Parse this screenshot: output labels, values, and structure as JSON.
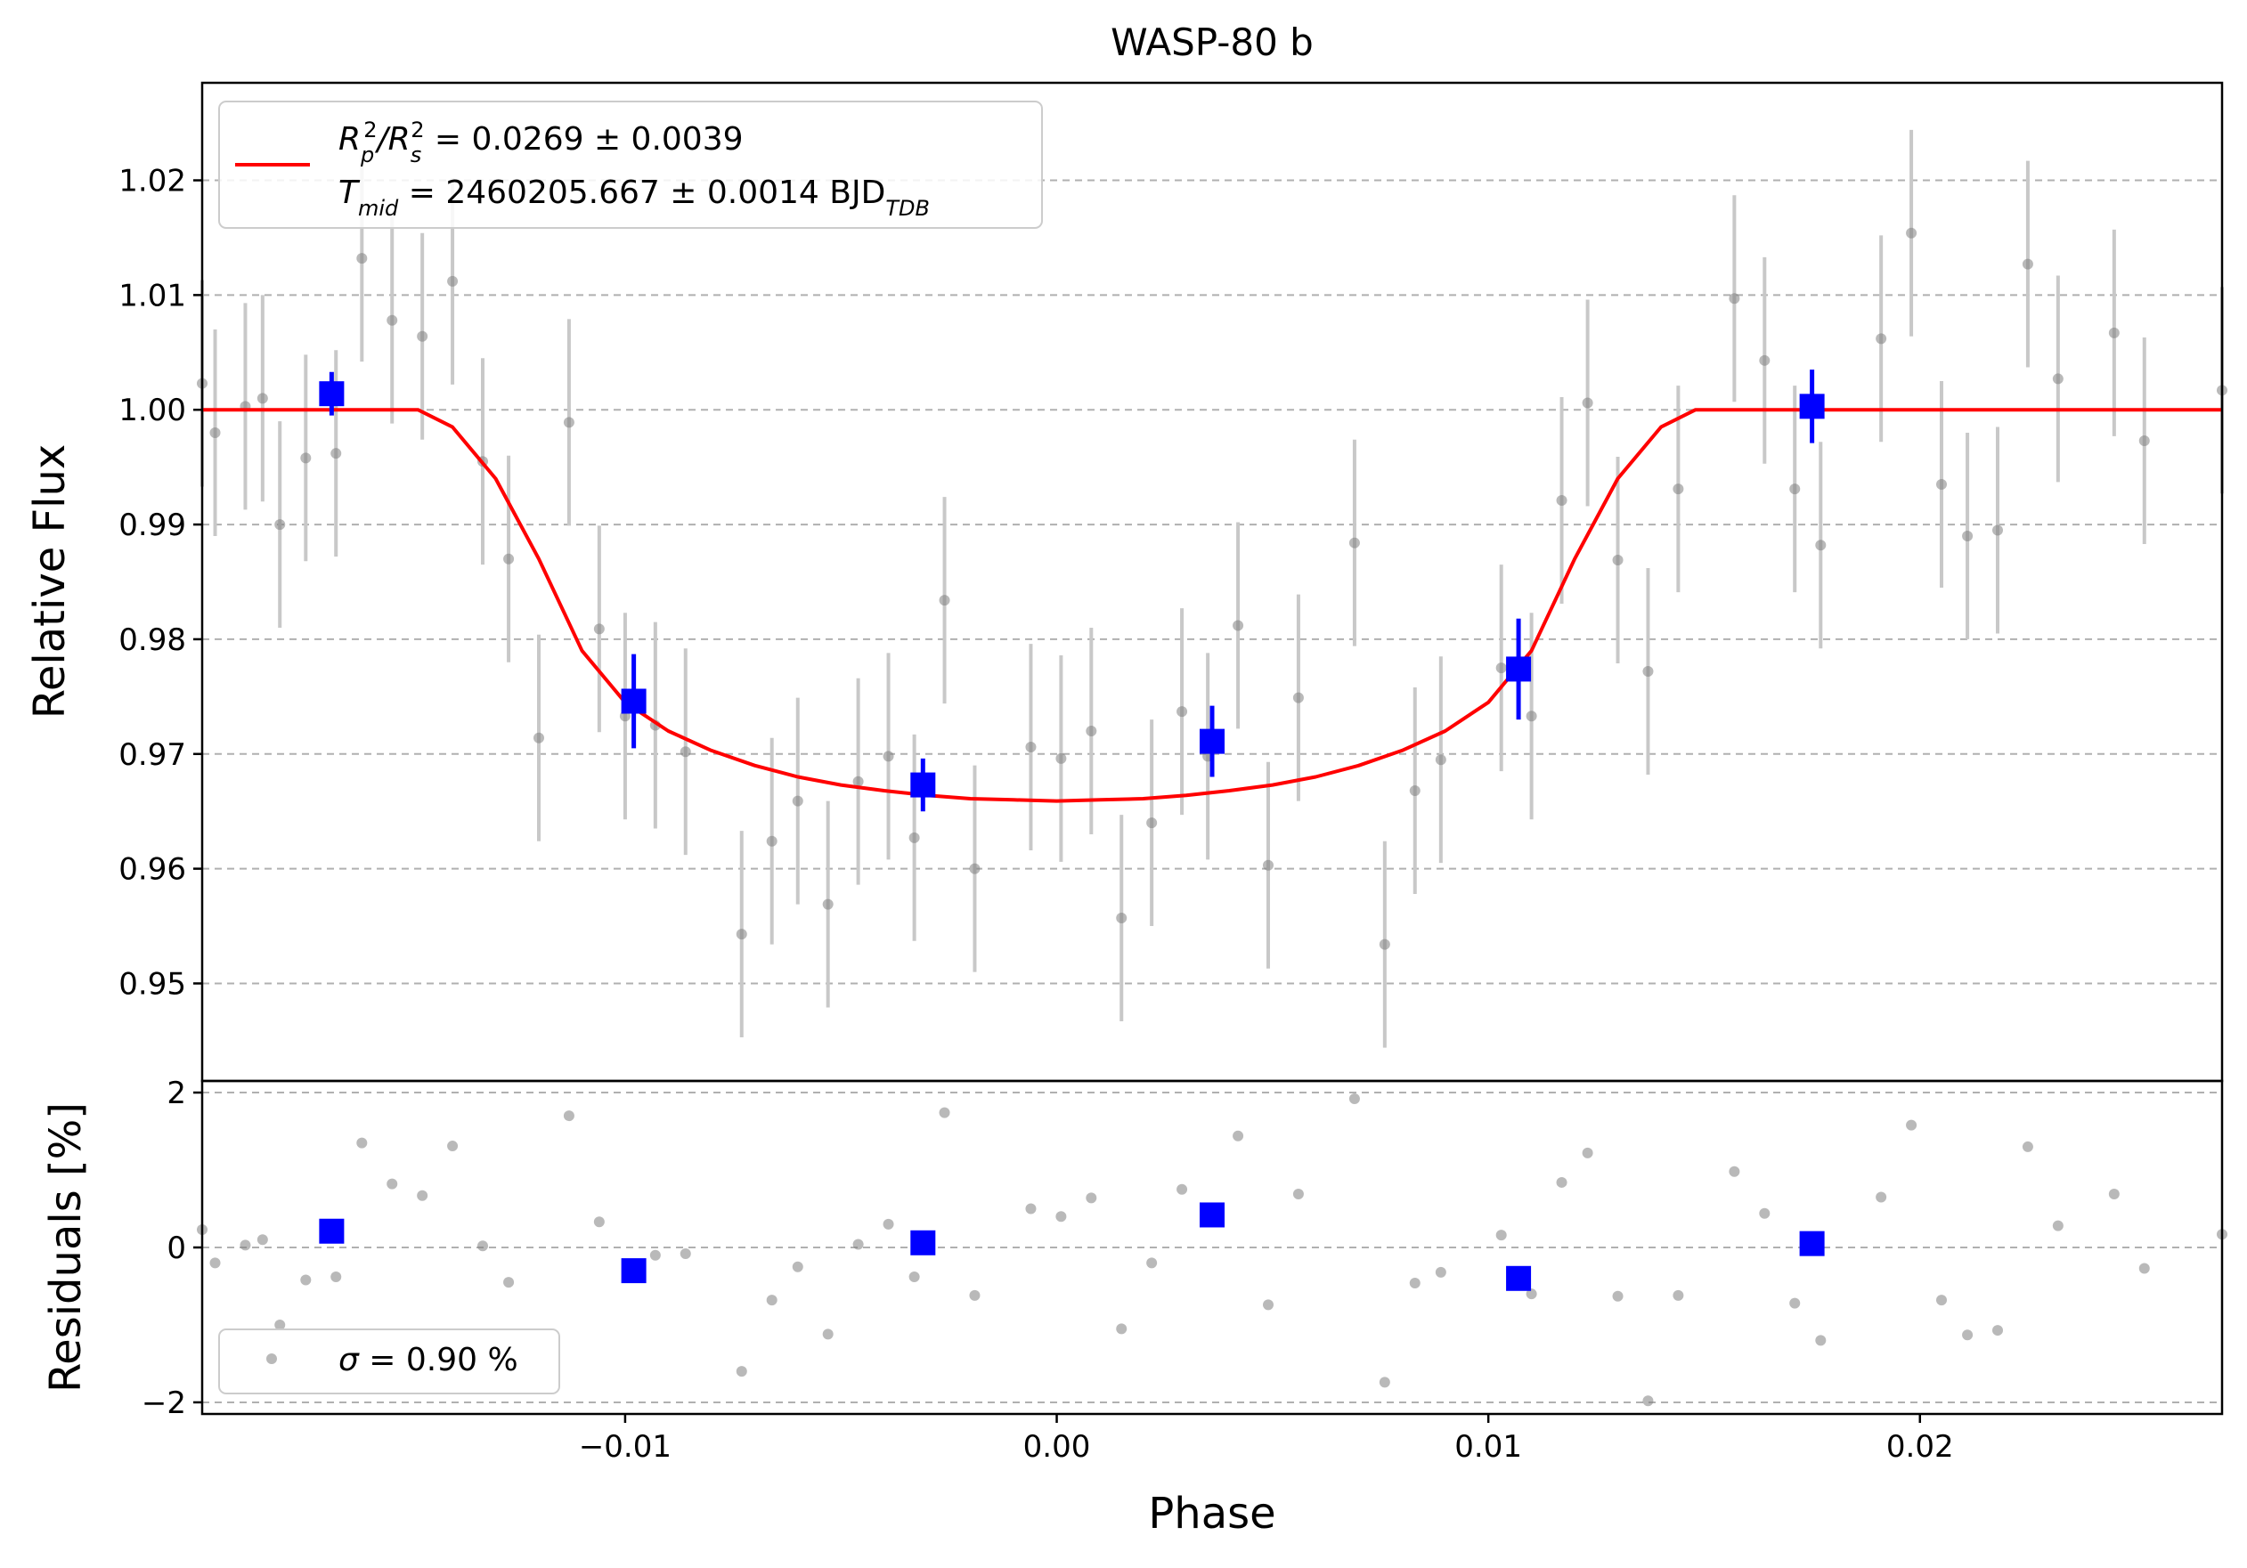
{
  "chart_data": [
    {
      "type": "scatter",
      "panel": "main",
      "title": "WASP-80 b",
      "xlabel": "",
      "ylabel": "Relative Flux",
      "xlim": [
        -0.0198,
        0.027
      ],
      "ylim": [
        0.9415,
        1.0285
      ],
      "yticks": [
        0.95,
        0.96,
        0.97,
        0.98,
        0.99,
        1.0,
        1.01,
        1.02
      ],
      "ytick_labels": [
        "0.95",
        "0.96",
        "0.97",
        "0.98",
        "0.99",
        "1.00",
        "1.01",
        "1.02"
      ],
      "grid": "horizontal dashed",
      "legend": {
        "placement": "top-left",
        "line1_main": "R",
        "line1_sub1": "p",
        "line1_sup1": "2",
        "line1_slash": "/R",
        "line1_sub2": "s",
        "line1_sup2": "2",
        "line1_rest": " = 0.0269 ± 0.0039",
        "line2_main": "T",
        "line2_sub": "mid",
        "line2_rest": " = 2460205.667 ± 0.0014 BJD",
        "line2_unit_sub": "TDB"
      },
      "colors": {
        "data": "#808080",
        "errorbar": "#c8c8c8",
        "binned": "#0000ff",
        "model": "#ff0000",
        "grid": "#b0b0b0"
      },
      "raw_points": [
        {
          "x": -0.0198,
          "y": 1.0023,
          "err": 0.009
        },
        {
          "x": -0.0195,
          "y": 0.998,
          "err": 0.009
        },
        {
          "x": -0.0188,
          "y": 1.0003,
          "err": 0.009
        },
        {
          "x": -0.0184,
          "y": 1.001,
          "err": 0.009
        },
        {
          "x": -0.018,
          "y": 0.99,
          "err": 0.009
        },
        {
          "x": -0.0174,
          "y": 0.9958,
          "err": 0.009
        },
        {
          "x": -0.0167,
          "y": 0.9962,
          "err": 0.009
        },
        {
          "x": -0.0161,
          "y": 1.0132,
          "err": 0.009
        },
        {
          "x": -0.0154,
          "y": 1.0078,
          "err": 0.009
        },
        {
          "x": -0.0147,
          "y": 1.0064,
          "err": 0.009
        },
        {
          "x": -0.014,
          "y": 1.0112,
          "err": 0.009
        },
        {
          "x": -0.0133,
          "y": 0.9955,
          "err": 0.009
        },
        {
          "x": -0.0127,
          "y": 0.987,
          "err": 0.009
        },
        {
          "x": -0.012,
          "y": 0.9714,
          "err": 0.009
        },
        {
          "x": -0.0113,
          "y": 0.9989,
          "err": 0.009
        },
        {
          "x": -0.0106,
          "y": 0.9809,
          "err": 0.009
        },
        {
          "x": -0.01,
          "y": 0.9733,
          "err": 0.009
        },
        {
          "x": -0.0093,
          "y": 0.9725,
          "err": 0.009
        },
        {
          "x": -0.0086,
          "y": 0.9702,
          "err": 0.009
        },
        {
          "x": -0.0073,
          "y": 0.9543,
          "err": 0.009
        },
        {
          "x": -0.0066,
          "y": 0.9624,
          "err": 0.009
        },
        {
          "x": -0.006,
          "y": 0.9659,
          "err": 0.009
        },
        {
          "x": -0.0053,
          "y": 0.9569,
          "err": 0.009
        },
        {
          "x": -0.0046,
          "y": 0.9676,
          "err": 0.009
        },
        {
          "x": -0.0039,
          "y": 0.9698,
          "err": 0.009
        },
        {
          "x": -0.0033,
          "y": 0.9627,
          "err": 0.009
        },
        {
          "x": -0.0026,
          "y": 0.9834,
          "err": 0.009
        },
        {
          "x": -0.0019,
          "y": 0.96,
          "err": 0.009
        },
        {
          "x": -0.0006,
          "y": 0.9706,
          "err": 0.009
        },
        {
          "x": 0.0001,
          "y": 0.9696,
          "err": 0.009
        },
        {
          "x": 0.0008,
          "y": 0.972,
          "err": 0.009
        },
        {
          "x": 0.0015,
          "y": 0.9557,
          "err": 0.009
        },
        {
          "x": 0.0022,
          "y": 0.964,
          "err": 0.009
        },
        {
          "x": 0.0029,
          "y": 0.9737,
          "err": 0.009
        },
        {
          "x": 0.0035,
          "y": 0.9698,
          "err": 0.009
        },
        {
          "x": 0.0042,
          "y": 0.9812,
          "err": 0.009
        },
        {
          "x": 0.0049,
          "y": 0.9603,
          "err": 0.009
        },
        {
          "x": 0.0056,
          "y": 0.9749,
          "err": 0.009
        },
        {
          "x": 0.0069,
          "y": 0.9884,
          "err": 0.009
        },
        {
          "x": 0.0076,
          "y": 0.9534,
          "err": 0.009
        },
        {
          "x": 0.0083,
          "y": 0.9668,
          "err": 0.009
        },
        {
          "x": 0.0089,
          "y": 0.9695,
          "err": 0.009
        },
        {
          "x": 0.0103,
          "y": 0.9775,
          "err": 0.009
        },
        {
          "x": 0.011,
          "y": 0.9733,
          "err": 0.009
        },
        {
          "x": 0.0117,
          "y": 0.9921,
          "err": 0.009
        },
        {
          "x": 0.0123,
          "y": 1.0006,
          "err": 0.009
        },
        {
          "x": 0.013,
          "y": 0.9869,
          "err": 0.009
        },
        {
          "x": 0.0137,
          "y": 0.9772,
          "err": 0.009
        },
        {
          "x": 0.0144,
          "y": 0.9931,
          "err": 0.009
        },
        {
          "x": 0.0157,
          "y": 1.0097,
          "err": 0.009
        },
        {
          "x": 0.0164,
          "y": 1.0043,
          "err": 0.009
        },
        {
          "x": 0.0171,
          "y": 0.9931,
          "err": 0.009
        },
        {
          "x": 0.0177,
          "y": 0.9882,
          "err": 0.009
        },
        {
          "x": 0.0191,
          "y": 1.0062,
          "err": 0.009
        },
        {
          "x": 0.0198,
          "y": 1.0154,
          "err": 0.009
        },
        {
          "x": 0.0205,
          "y": 0.9935,
          "err": 0.009
        },
        {
          "x": 0.0211,
          "y": 0.989,
          "err": 0.009
        },
        {
          "x": 0.0218,
          "y": 0.9895,
          "err": 0.009
        },
        {
          "x": 0.0225,
          "y": 1.0127,
          "err": 0.009
        },
        {
          "x": 0.0232,
          "y": 1.0027,
          "err": 0.009
        },
        {
          "x": 0.0245,
          "y": 1.0067,
          "err": 0.009
        },
        {
          "x": 0.0252,
          "y": 0.9973,
          "err": 0.009
        },
        {
          "x": 0.027,
          "y": 1.0017,
          "err": 0.009
        }
      ],
      "binned_points": [
        {
          "x": -0.0168,
          "y": 1.0014,
          "err": 0.0019
        },
        {
          "x": -0.0098,
          "y": 0.9746,
          "err": 0.0041
        },
        {
          "x": -0.0031,
          "y": 0.9673,
          "err": 0.0023
        },
        {
          "x": 0.0036,
          "y": 0.9711,
          "err": 0.0031
        },
        {
          "x": 0.0107,
          "y": 0.9774,
          "err": 0.0044
        },
        {
          "x": 0.0175,
          "y": 1.0003,
          "err": 0.0032
        }
      ],
      "model": {
        "name": "transit model",
        "depth_center": 0.9659,
        "baseline": 1.0,
        "x": [
          -0.0198,
          -0.0148,
          -0.014,
          -0.013,
          -0.012,
          -0.011,
          -0.01,
          -0.009,
          -0.008,
          -0.007,
          -0.006,
          -0.005,
          -0.004,
          -0.003,
          -0.002,
          -0.001,
          0.0,
          0.001,
          0.002,
          0.003,
          0.004,
          0.005,
          0.006,
          0.007,
          0.008,
          0.009,
          0.01,
          0.011,
          0.012,
          0.013,
          0.014,
          0.0148,
          0.027
        ],
        "y": [
          1.0,
          1.0,
          0.9985,
          0.994,
          0.987,
          0.979,
          0.9745,
          0.972,
          0.9703,
          0.969,
          0.968,
          0.9673,
          0.9668,
          0.9664,
          0.9661,
          0.966,
          0.9659,
          0.966,
          0.9661,
          0.9664,
          0.9668,
          0.9673,
          0.968,
          0.969,
          0.9703,
          0.972,
          0.9745,
          0.979,
          0.987,
          0.994,
          0.9985,
          1.0,
          1.0
        ]
      }
    },
    {
      "type": "scatter",
      "panel": "residuals",
      "xlabel": "Phase",
      "ylabel": "Residuals [%]",
      "xlim": [
        -0.0198,
        0.027
      ],
      "ylim": [
        -2.15,
        2.15
      ],
      "yticks": [
        -2,
        0,
        2
      ],
      "ytick_labels": [
        "−2",
        "0",
        "2"
      ],
      "xticks": [
        -0.01,
        0.0,
        0.01,
        0.02
      ],
      "xtick_labels": [
        "−0.01",
        "0.00",
        "0.01",
        "0.02"
      ],
      "grid": "horizontal dashed",
      "legend": {
        "placement": "bottom-left",
        "sigma_symbol": "σ",
        "sigma_rest": " = 0.90 %"
      },
      "raw_points": [
        {
          "x": -0.0198,
          "y": 0.23
        },
        {
          "x": -0.0195,
          "y": -0.2
        },
        {
          "x": -0.0188,
          "y": 0.03
        },
        {
          "x": -0.0184,
          "y": 0.1
        },
        {
          "x": -0.018,
          "y": -1.0
        },
        {
          "x": -0.0174,
          "y": -0.42
        },
        {
          "x": -0.0167,
          "y": -0.38
        },
        {
          "x": -0.0161,
          "y": 1.35
        },
        {
          "x": -0.0154,
          "y": 0.82
        },
        {
          "x": -0.0147,
          "y": 0.67
        },
        {
          "x": -0.014,
          "y": 1.31
        },
        {
          "x": -0.0133,
          "y": 0.02
        },
        {
          "x": -0.0127,
          "y": -0.45
        },
        {
          "x": -0.0113,
          "y": 1.7
        },
        {
          "x": -0.0106,
          "y": 0.33
        },
        {
          "x": -0.0093,
          "y": -0.1
        },
        {
          "x": -0.0086,
          "y": -0.08
        },
        {
          "x": -0.0073,
          "y": -1.6
        },
        {
          "x": -0.0066,
          "y": -0.68
        },
        {
          "x": -0.006,
          "y": -0.25
        },
        {
          "x": -0.0053,
          "y": -1.12
        },
        {
          "x": -0.0046,
          "y": 0.04
        },
        {
          "x": -0.0039,
          "y": 0.3
        },
        {
          "x": -0.0033,
          "y": -0.38
        },
        {
          "x": -0.0026,
          "y": 1.74
        },
        {
          "x": -0.0019,
          "y": -0.62
        },
        {
          "x": -0.0006,
          "y": 0.5
        },
        {
          "x": 0.0001,
          "y": 0.4
        },
        {
          "x": 0.0008,
          "y": 0.64
        },
        {
          "x": 0.0015,
          "y": -1.05
        },
        {
          "x": 0.0022,
          "y": -0.2
        },
        {
          "x": 0.0029,
          "y": 0.75
        },
        {
          "x": 0.0042,
          "y": 1.44
        },
        {
          "x": 0.0049,
          "y": -0.74
        },
        {
          "x": 0.0056,
          "y": 0.69
        },
        {
          "x": 0.0069,
          "y": 1.92
        },
        {
          "x": 0.0076,
          "y": -1.74
        },
        {
          "x": 0.0083,
          "y": -0.46
        },
        {
          "x": 0.0089,
          "y": -0.32
        },
        {
          "x": 0.0103,
          "y": 0.16
        },
        {
          "x": 0.011,
          "y": -0.6
        },
        {
          "x": 0.0117,
          "y": 0.84
        },
        {
          "x": 0.0123,
          "y": 1.22
        },
        {
          "x": 0.013,
          "y": -0.63
        },
        {
          "x": 0.0137,
          "y": -1.98
        },
        {
          "x": 0.0144,
          "y": -0.62
        },
        {
          "x": 0.0157,
          "y": 0.98
        },
        {
          "x": 0.0164,
          "y": 0.44
        },
        {
          "x": 0.0171,
          "y": -0.72
        },
        {
          "x": 0.0177,
          "y": -1.2
        },
        {
          "x": 0.0191,
          "y": 0.65
        },
        {
          "x": 0.0198,
          "y": 1.58
        },
        {
          "x": 0.0205,
          "y": -0.68
        },
        {
          "x": 0.0211,
          "y": -1.13
        },
        {
          "x": 0.0218,
          "y": -1.07
        },
        {
          "x": 0.0225,
          "y": 1.3
        },
        {
          "x": 0.0232,
          "y": 0.28
        },
        {
          "x": 0.0245,
          "y": 0.69
        },
        {
          "x": 0.0252,
          "y": -0.27
        },
        {
          "x": 0.027,
          "y": 0.17
        }
      ],
      "binned_points": [
        {
          "x": -0.0168,
          "y": 0.21
        },
        {
          "x": -0.0098,
          "y": -0.3
        },
        {
          "x": -0.0031,
          "y": 0.06
        },
        {
          "x": 0.0036,
          "y": 0.42
        },
        {
          "x": 0.0107,
          "y": -0.4
        },
        {
          "x": 0.0175,
          "y": 0.05
        }
      ]
    }
  ]
}
